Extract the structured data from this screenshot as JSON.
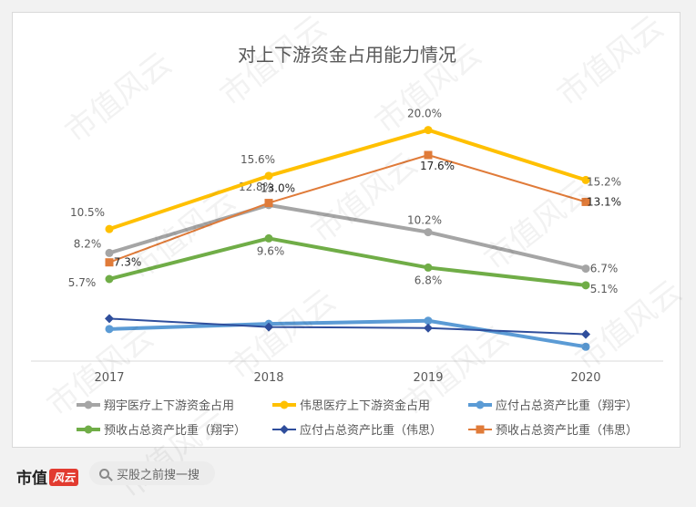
{
  "chart_data": {
    "type": "line",
    "title": "对上下游资金占用能力情况",
    "categories": [
      "2017",
      "2018",
      "2019",
      "2020"
    ],
    "value_unit": "%",
    "series": [
      {
        "name": "翔宇医疗上下游资金占用",
        "values": [
          8.2,
          12.8,
          10.2,
          6.7
        ],
        "labels": [
          "8.2%",
          "12.8%",
          "10.2%",
          "6.7%"
        ],
        "color": "#a5a5a5",
        "marker": "circle",
        "width": 4
      },
      {
        "name": "伟思医疗上下游资金占用",
        "values": [
          10.5,
          15.6,
          20.0,
          15.2
        ],
        "labels": [
          "10.5%",
          "15.6%",
          "20.0%",
          "15.2%"
        ],
        "color": "#ffc000",
        "marker": "circle",
        "width": 4
      },
      {
        "name": "应付占总资产比重（翔宇）",
        "values": [
          0.9,
          1.4,
          1.7,
          -0.8
        ],
        "labels": [
          "",
          "",
          "",
          ""
        ],
        "color": "#5b9bd5",
        "marker": "circle",
        "width": 4
      },
      {
        "name": "预收占总资产比重（翔宇）",
        "values": [
          5.7,
          9.6,
          6.8,
          5.1
        ],
        "labels": [
          "5.7%",
          "9.6%",
          "6.8%",
          "5.1%"
        ],
        "color": "#70ad47",
        "marker": "circle",
        "width": 4
      },
      {
        "name": "应付占总资产比重（伟思）",
        "values": [
          1.9,
          1.1,
          1.0,
          0.4
        ],
        "labels": [
          "",
          "",
          "",
          ""
        ],
        "color": "#2f4e9c",
        "marker": "diamond",
        "width": 2
      },
      {
        "name": "预收占总资产比重（伟思）",
        "values": [
          7.3,
          13.0,
          17.6,
          13.1
        ],
        "labels": [
          "7.3%",
          "13.0%",
          "17.6%",
          "13.1%"
        ],
        "color": "#e07b39",
        "marker": "square",
        "width": 2
      }
    ],
    "ylim": [
      -2,
      22.5
    ],
    "grid": false,
    "legend_position": "bottom"
  },
  "footer": {
    "brand": "市值",
    "brand_mark": "风云",
    "search_placeholder": "买股之前搜一搜",
    "search_icon": "search-icon"
  },
  "watermark": "市值风云"
}
